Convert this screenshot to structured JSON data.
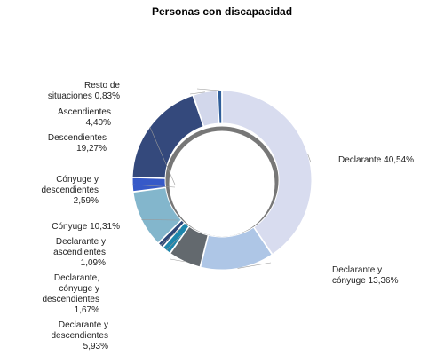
{
  "chart_data": {
    "type": "pie",
    "title": "Personas con discapacidad",
    "slices": [
      {
        "label": "Declarante",
        "value": 40.54,
        "display": "Declarante 40,54%",
        "color": "#d8dcef"
      },
      {
        "label": "Declarante y cónyuge",
        "value": 13.36,
        "display": "Declarante y\ncónyuge 13,36%",
        "color": "#aec6e6"
      },
      {
        "label": "Declarante y descendientes",
        "value": 5.93,
        "display": "Declarante y\ndescendientes\n5,93%",
        "color": "#63696e"
      },
      {
        "label": "Declarante, cónyuge y descendientes",
        "value": 1.67,
        "display": "Declarante,\ncónyuge y\ndescendientes\n1,67%",
        "color": "#1e86ac"
      },
      {
        "label": "Declarante y ascendientes",
        "value": 1.09,
        "display": "Declarante y\nascendientes\n1,09%",
        "color": "#2d4778"
      },
      {
        "label": "Cónyuge",
        "value": 10.31,
        "display": "Cónyuge 10,31%",
        "color": "#83b6cc"
      },
      {
        "label": "Cónyuge y descendientes",
        "value": 2.59,
        "display": "Cónyuge y\ndescendientes\n2,59%",
        "color": "#3659c8"
      },
      {
        "label": "Descendientes",
        "value": 19.27,
        "display": "Descendientes\n19,27%",
        "color": "#34497c"
      },
      {
        "label": "Ascendientes",
        "value": 4.4,
        "display": "Ascendientes\n4,40%",
        "color": "#d2d7eb"
      },
      {
        "label": "Resto de situaciones",
        "value": 0.83,
        "display": "Resto de\nsituaciones 0,83%",
        "color": "#2f5e9a"
      }
    ]
  }
}
